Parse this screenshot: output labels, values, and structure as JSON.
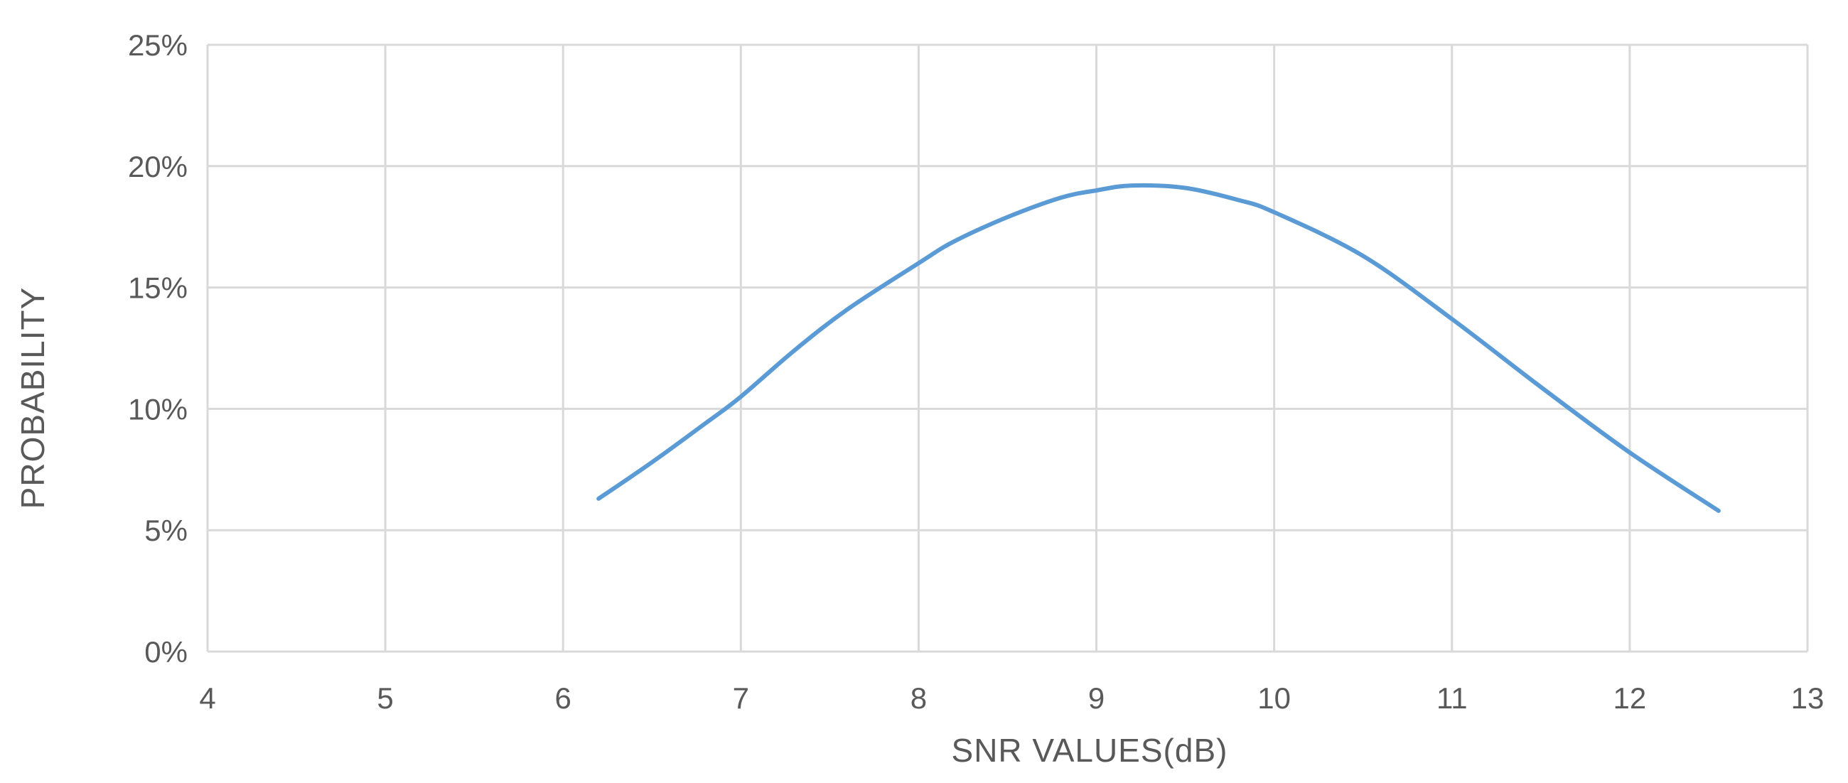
{
  "chart_data": {
    "type": "line",
    "xlabel": "SNR VALUES(dB)",
    "ylabel": "PROBABILITY",
    "xlim": [
      4,
      13
    ],
    "ylim": [
      0,
      0.25
    ],
    "x_ticks": [
      4,
      5,
      6,
      7,
      8,
      9,
      10,
      11,
      12,
      13
    ],
    "y_ticks": [
      0,
      0.05,
      0.1,
      0.15,
      0.2,
      0.25
    ],
    "y_tick_labels": [
      "0%",
      "5%",
      "10%",
      "15%",
      "20%",
      "25%"
    ],
    "grid": true,
    "series": [
      {
        "color": "#5b9bd5",
        "x": [
          6.2,
          6.5,
          6.8,
          7.0,
          7.3,
          7.6,
          8.0,
          8.2,
          8.5,
          8.8,
          9.0,
          9.2,
          9.5,
          9.8,
          10.0,
          10.5,
          11.0,
          11.5,
          12.0,
          12.5
        ],
        "y": [
          0.063,
          0.078,
          0.094,
          0.105,
          0.124,
          0.141,
          0.16,
          0.169,
          0.179,
          0.187,
          0.19,
          0.192,
          0.191,
          0.186,
          0.181,
          0.163,
          0.137,
          0.109,
          0.082,
          0.058
        ]
      }
    ]
  }
}
